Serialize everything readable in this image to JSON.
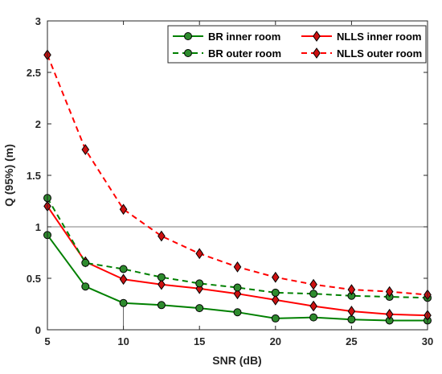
{
  "chart_data": {
    "type": "line",
    "title": "",
    "xlabel": "SNR (dB)",
    "ylabel": "Q (95%) (m)",
    "xlim": [
      5,
      30
    ],
    "ylim": [
      0,
      3
    ],
    "xticks": [
      5,
      10,
      15,
      20,
      25,
      30
    ],
    "yticks": [
      0,
      0.5,
      1,
      1.5,
      2,
      2.5,
      3
    ],
    "grid": false,
    "reference_lines": [
      {
        "axis": "y",
        "value": 1
      },
      {
        "axis": "x",
        "value": 10,
        "from": 0,
        "to": 0.26
      }
    ],
    "legend_position": "top-right",
    "x": [
      5,
      7.5,
      10,
      12.5,
      15,
      17.5,
      20,
      22.5,
      25,
      27.5,
      30
    ],
    "series": [
      {
        "name": "BR inner room",
        "color": "#008000",
        "marker_face": "#2e8b2e",
        "line_style": "solid",
        "marker": "circle",
        "values": [
          0.92,
          0.42,
          0.26,
          0.24,
          0.21,
          0.17,
          0.11,
          0.12,
          0.1,
          0.09,
          0.09
        ]
      },
      {
        "name": "NLLS inner room",
        "color": "#ff0000",
        "marker_face": "#cc1111",
        "line_style": "solid",
        "marker": "diamond",
        "values": [
          1.2,
          0.66,
          0.49,
          0.44,
          0.4,
          0.35,
          0.29,
          0.23,
          0.18,
          0.15,
          0.14
        ]
      },
      {
        "name": "BR outer room",
        "color": "#008000",
        "marker_face": "#2e8b2e",
        "line_style": "dashed",
        "marker": "circle",
        "values": [
          1.28,
          0.65,
          0.59,
          0.51,
          0.45,
          0.41,
          0.36,
          0.35,
          0.33,
          0.32,
          0.31
        ]
      },
      {
        "name": "NLLS outer room",
        "color": "#ff0000",
        "marker_face": "#cc1111",
        "line_style": "dashed",
        "marker": "diamond",
        "values": [
          2.67,
          1.75,
          1.17,
          0.91,
          0.74,
          0.61,
          0.51,
          0.44,
          0.39,
          0.37,
          0.34
        ]
      }
    ]
  }
}
